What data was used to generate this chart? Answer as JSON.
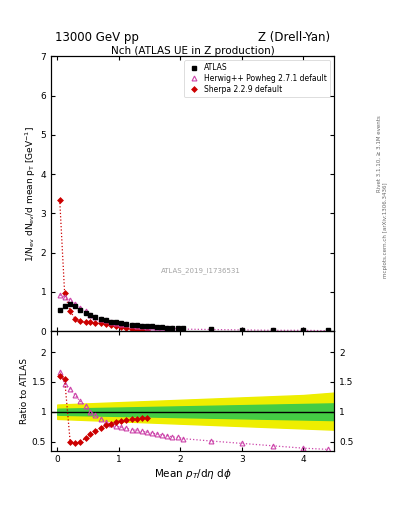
{
  "title_top": "13000 GeV pp",
  "title_right": "Z (Drell-Yan)",
  "plot_title": "Nch (ATLAS UE in Z production)",
  "xlabel": "Mean $p_T$/d$\\eta$ d$\\phi$",
  "ylabel_main": "1/N$_{ev}$ dN$_{ev}$/d mean p$_T$ [GeV]$^{-1}$",
  "ylabel_ratio": "Ratio to ATLAS",
  "watermark": "ATLAS_2019_I1736531",
  "right_label1": "Rivet 3.1.10, ≥ 3.1M events",
  "right_label2": "mcplots.cern.ch [arXiv:1306.3436]",
  "xlim": [
    -0.1,
    4.5
  ],
  "ylim_main": [
    0,
    7
  ],
  "ylim_ratio": [
    0.35,
    2.35
  ],
  "atlas_x": [
    0.04,
    0.12,
    0.21,
    0.29,
    0.37,
    0.46,
    0.54,
    0.62,
    0.71,
    0.79,
    0.87,
    0.96,
    1.04,
    1.12,
    1.21,
    1.29,
    1.37,
    1.46,
    1.54,
    1.62,
    1.71,
    1.79,
    1.87,
    1.96,
    2.04,
    2.5,
    3.0,
    3.5,
    4.0,
    4.4
  ],
  "atlas_y": [
    0.55,
    0.65,
    0.68,
    0.63,
    0.55,
    0.47,
    0.4,
    0.35,
    0.31,
    0.27,
    0.24,
    0.22,
    0.2,
    0.18,
    0.16,
    0.15,
    0.14,
    0.13,
    0.12,
    0.11,
    0.1,
    0.09,
    0.08,
    0.07,
    0.07,
    0.05,
    0.04,
    0.03,
    0.02,
    0.02
  ],
  "herwig_x": [
    0.04,
    0.12,
    0.21,
    0.29,
    0.37,
    0.46,
    0.54,
    0.62,
    0.71,
    0.79,
    0.87,
    0.96,
    1.04,
    1.12,
    1.21,
    1.29,
    1.37,
    1.46,
    1.54,
    1.62,
    1.71,
    1.79,
    1.87,
    1.96,
    2.04,
    2.5,
    3.0,
    3.5,
    4.0,
    4.4
  ],
  "herwig_y": [
    0.92,
    0.88,
    0.8,
    0.7,
    0.6,
    0.5,
    0.42,
    0.36,
    0.31,
    0.27,
    0.24,
    0.21,
    0.19,
    0.17,
    0.15,
    0.14,
    0.12,
    0.11,
    0.1,
    0.09,
    0.08,
    0.07,
    0.07,
    0.06,
    0.05,
    0.04,
    0.03,
    0.02,
    0.02,
    0.01
  ],
  "sherpa_x": [
    0.04,
    0.12,
    0.21,
    0.29,
    0.37,
    0.46,
    0.54,
    0.62,
    0.71,
    0.79,
    0.87,
    0.96,
    1.04,
    1.12,
    1.21,
    1.29,
    1.37,
    1.46
  ],
  "sherpa_y": [
    3.35,
    0.97,
    0.5,
    0.32,
    0.25,
    0.23,
    0.22,
    0.21,
    0.2,
    0.18,
    0.16,
    0.13,
    0.1,
    0.08,
    0.06,
    0.04,
    0.03,
    0.02
  ],
  "herwig_ratio_x": [
    0.04,
    0.12,
    0.21,
    0.29,
    0.37,
    0.46,
    0.54,
    0.62,
    0.71,
    0.79,
    0.87,
    0.96,
    1.04,
    1.12,
    1.21,
    1.29,
    1.37,
    1.46,
    1.54,
    1.62,
    1.71,
    1.79,
    1.87,
    1.96,
    2.04,
    2.5,
    3.0,
    3.5,
    4.0,
    4.4
  ],
  "herwig_ratio_y": [
    1.67,
    1.47,
    1.38,
    1.28,
    1.18,
    1.1,
    1.0,
    0.95,
    0.88,
    0.83,
    0.79,
    0.76,
    0.74,
    0.72,
    0.7,
    0.69,
    0.67,
    0.66,
    0.64,
    0.63,
    0.61,
    0.6,
    0.58,
    0.57,
    0.55,
    0.51,
    0.47,
    0.43,
    0.39,
    0.37
  ],
  "sherpa_ratio_x": [
    0.04,
    0.12,
    0.21,
    0.29,
    0.37,
    0.46,
    0.54,
    0.62,
    0.71,
    0.79,
    0.87,
    0.96,
    1.04,
    1.12,
    1.21,
    1.29,
    1.37,
    1.46
  ],
  "sherpa_ratio_y": [
    1.6,
    1.55,
    0.5,
    0.47,
    0.49,
    0.56,
    0.62,
    0.68,
    0.73,
    0.77,
    0.8,
    0.83,
    0.85,
    0.86,
    0.88,
    0.88,
    0.89,
    0.9
  ],
  "green_band_x": [
    0.0,
    0.5,
    1.0,
    1.5,
    2.0,
    2.5,
    3.0,
    3.5,
    4.0,
    4.5
  ],
  "green_band_low": [
    0.95,
    0.94,
    0.93,
    0.92,
    0.91,
    0.9,
    0.89,
    0.88,
    0.87,
    0.86
  ],
  "green_band_high": [
    1.05,
    1.06,
    1.07,
    1.08,
    1.09,
    1.1,
    1.11,
    1.12,
    1.13,
    1.14
  ],
  "yellow_band_x": [
    0.0,
    0.5,
    1.0,
    1.5,
    2.0,
    2.5,
    3.0,
    3.5,
    4.0,
    4.5
  ],
  "yellow_band_low": [
    0.88,
    0.86,
    0.84,
    0.82,
    0.8,
    0.78,
    0.76,
    0.74,
    0.72,
    0.7
  ],
  "yellow_band_high": [
    1.12,
    1.14,
    1.16,
    1.18,
    1.2,
    1.22,
    1.24,
    1.26,
    1.28,
    1.32
  ],
  "color_herwig": "#cc44aa",
  "color_sherpa": "#cc0000",
  "color_atlas": "#000000",
  "color_green_band": "#44cc44",
  "color_yellow_band": "#eeee00",
  "fontsize": 8
}
